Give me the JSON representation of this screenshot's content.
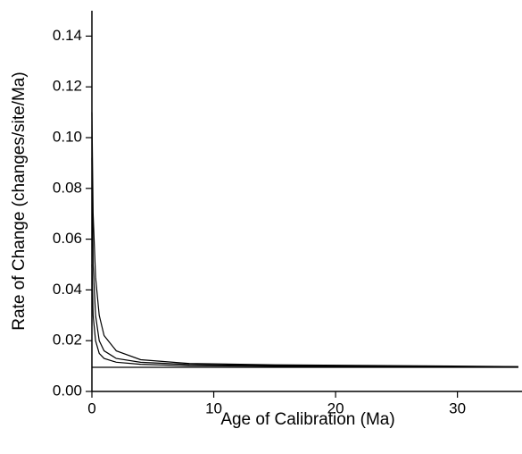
{
  "chart_data": {
    "type": "line",
    "xlabel": "Age of Calibration (Ma)",
    "ylabel": "Rate of Change (changes/site/Ma)",
    "x": [
      0,
      0.1,
      0.3,
      0.6,
      1,
      2,
      4,
      8,
      15,
      35
    ],
    "series": [
      {
        "color": "#000000",
        "values": [
          0.11,
          0.07,
          0.045,
          0.03,
          0.022,
          0.016,
          0.0125,
          0.011,
          0.0105,
          0.0098
        ]
      },
      {
        "color": "#000000",
        "values": [
          0.092,
          0.05,
          0.03,
          0.02,
          0.016,
          0.013,
          0.0115,
          0.0106,
          0.0102,
          0.0097
        ]
      },
      {
        "color": "#000000",
        "values": [
          0.05,
          0.03,
          0.02,
          0.015,
          0.013,
          0.0115,
          0.0107,
          0.0101,
          0.0099,
          0.0096
        ]
      },
      {
        "color": "#000000",
        "values": [
          0.0095,
          0.0095,
          0.0095,
          0.0095,
          0.0095,
          0.0095,
          0.0095,
          0.0095,
          0.0095,
          0.0095
        ]
      }
    ],
    "xlim": [
      0,
      35.3
    ],
    "ylim": [
      0,
      0.15
    ],
    "xticks": [
      0,
      10,
      20,
      30
    ],
    "yticks": [
      {
        "value": 0,
        "label": "0.00"
      },
      0.02,
      0.04,
      0.06,
      0.08,
      {
        "value": 0.1,
        "label": "0.10"
      },
      0.12,
      0.14
    ],
    "grid": false
  }
}
